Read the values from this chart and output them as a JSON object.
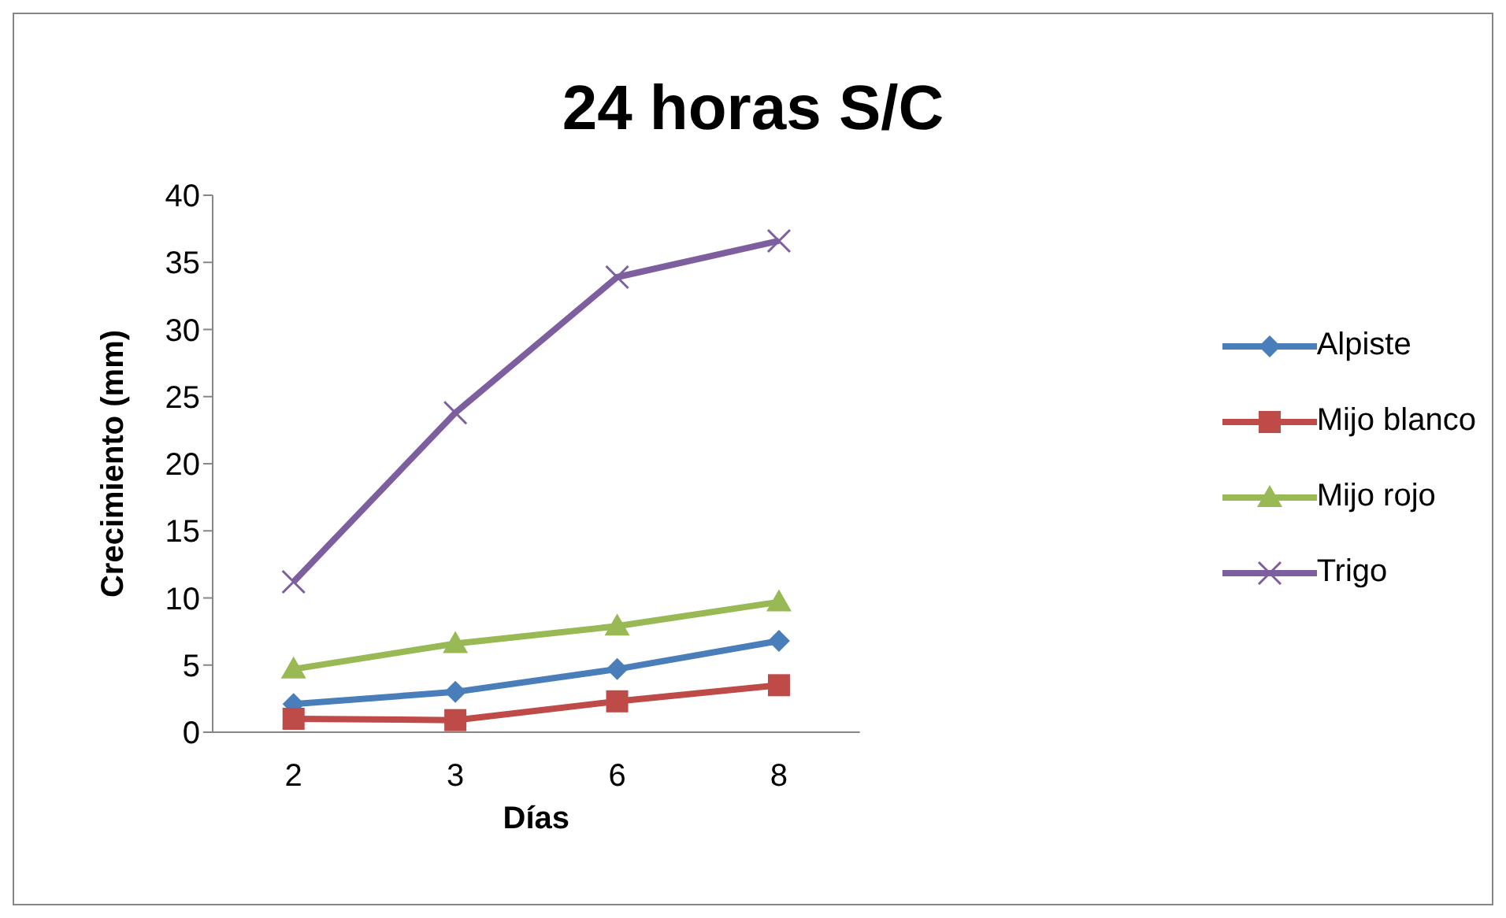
{
  "chart_data": {
    "type": "line",
    "title": "24 horas S/C",
    "xlabel": "Días",
    "ylabel": "Crecimiento (mm)",
    "categories": [
      "2",
      "3",
      "6",
      "8"
    ],
    "series": [
      {
        "name": "Alpiste",
        "color": "#4a7ebb",
        "marker": "diamond",
        "values": [
          2.1,
          3.0,
          4.7,
          6.8
        ]
      },
      {
        "name": "Mijo blanco",
        "color": "#be4b48",
        "marker": "square",
        "values": [
          1.0,
          0.9,
          2.3,
          3.5
        ]
      },
      {
        "name": "Mijo rojo",
        "color": "#98b954",
        "marker": "triangle",
        "values": [
          4.7,
          6.6,
          7.9,
          9.7
        ]
      },
      {
        "name": "Trigo",
        "color": "#7d5fa0",
        "marker": "cross",
        "values": [
          11.2,
          23.8,
          33.9,
          36.6
        ]
      }
    ],
    "ylim": [
      0,
      40
    ],
    "yticks": [
      0,
      5,
      10,
      15,
      20,
      25,
      30,
      35,
      40
    ],
    "grid": false,
    "legend": "right",
    "line_style": "solid"
  }
}
